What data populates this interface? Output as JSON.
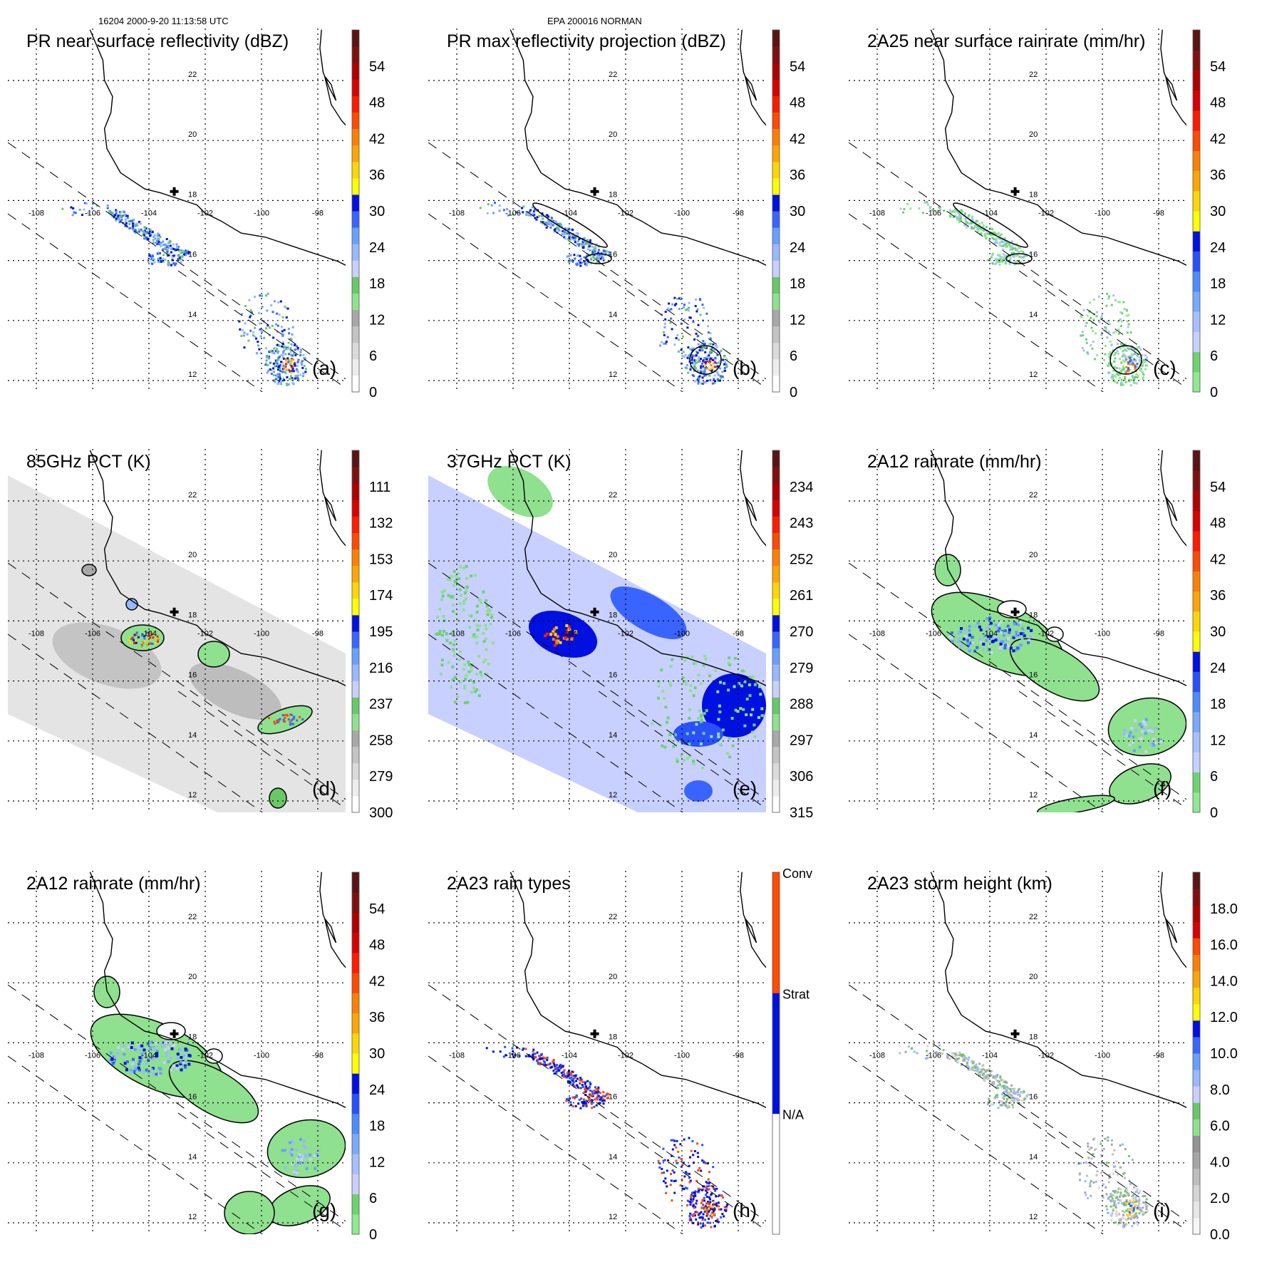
{
  "header": {
    "orbit_time": "16204 2000-9-20 11:13:58 UTC",
    "radar": "EPA 200016 NORMAN"
  },
  "map": {
    "lat_labels": [
      "22",
      "20",
      "18",
      "16",
      "14",
      "12"
    ],
    "lat_values": [
      22,
      20,
      18,
      16,
      14,
      12
    ],
    "lon_labels": [
      "-108",
      "-106",
      "-104",
      "-102",
      "-100",
      "-98"
    ],
    "lon_values": [
      -108,
      -106,
      -104,
      -102,
      -100,
      -98
    ],
    "radar_marker": {
      "lat": 18.3,
      "lon": -103.1
    }
  },
  "palettes": {
    "dbz": [
      "#ffffff",
      "#ededed",
      "#dadada",
      "#c4c4c4",
      "#a8a8a8",
      "#8fe08f",
      "#68c868",
      "#c8d0ff",
      "#98b8ff",
      "#68a0ff",
      "#3a64ff",
      "#0010e0",
      "#ffff00",
      "#ffd700",
      "#ffa500",
      "#ff8000",
      "#ff4a00",
      "#ff1a00",
      "#d80000",
      "#b00000",
      "#801010",
      "#5a1414"
    ],
    "rain": [
      "#90e890",
      "#6ed26e",
      "#c8d0ff",
      "#a6c0ff",
      "#78aaff",
      "#4c8cff",
      "#2850ff",
      "#0010e0",
      "#ffff00",
      "#ffd700",
      "#ffa500",
      "#ff8000",
      "#ff4a00",
      "#ff1a00",
      "#d80000",
      "#b00000",
      "#801010",
      "#5a1414"
    ],
    "height": [
      "#f6f6f6",
      "#e6e6e6",
      "#d4d4d4",
      "#bdbdbd",
      "#a5a5a5",
      "#939393",
      "#8fe08f",
      "#68c868",
      "#c8d0ff",
      "#98b8ff",
      "#68a0ff",
      "#3a64ff",
      "#0010e0",
      "#ffff00",
      "#ffd700",
      "#ffa500",
      "#ff8000",
      "#ff4a00",
      "#d80000",
      "#b00000",
      "#801010",
      "#5a1414"
    ],
    "types": [
      "#ffffff",
      "#0010e0",
      "#ff4a00"
    ]
  },
  "panels": [
    {
      "title": "PR near surface reflectivity (dBZ)",
      "letter": "(a)",
      "palette": "dbz",
      "scale_max": 60,
      "ticks": [
        {
          "v": 0,
          "label": "0"
        },
        {
          "v": 6,
          "label": "6"
        },
        {
          "v": 12,
          "label": "12"
        },
        {
          "v": 18,
          "label": "18"
        },
        {
          "v": 24,
          "label": "24"
        },
        {
          "v": 30,
          "label": "30"
        },
        {
          "v": 36,
          "label": "36"
        },
        {
          "v": 42,
          "label": "42"
        },
        {
          "v": 48,
          "label": "48"
        },
        {
          "v": 54,
          "label": "54"
        }
      ]
    },
    {
      "title": "PR max reflectivity projection (dBZ)",
      "letter": "(b)",
      "palette": "dbz",
      "scale_max": 60,
      "ticks": [
        {
          "v": 0,
          "label": "0"
        },
        {
          "v": 6,
          "label": "6"
        },
        {
          "v": 12,
          "label": "12"
        },
        {
          "v": 18,
          "label": "18"
        },
        {
          "v": 24,
          "label": "24"
        },
        {
          "v": 30,
          "label": "30"
        },
        {
          "v": 36,
          "label": "36"
        },
        {
          "v": 42,
          "label": "42"
        },
        {
          "v": 48,
          "label": "48"
        },
        {
          "v": 54,
          "label": "54"
        }
      ]
    },
    {
      "title": "2A25 near surface rainrate (mm/hr)",
      "letter": "(c)",
      "palette": "rain",
      "scale_max": 60,
      "ticks": [
        {
          "v": 0,
          "label": "0"
        },
        {
          "v": 6,
          "label": "6"
        },
        {
          "v": 12,
          "label": "12"
        },
        {
          "v": 18,
          "label": "18"
        },
        {
          "v": 24,
          "label": "24"
        },
        {
          "v": 30,
          "label": "30"
        },
        {
          "v": 36,
          "label": "36"
        },
        {
          "v": 42,
          "label": "42"
        },
        {
          "v": 48,
          "label": "48"
        },
        {
          "v": 54,
          "label": "54"
        }
      ]
    },
    {
      "title": "85GHz PCT (K)",
      "letter": "(d)",
      "palette": "dbz",
      "scale_max": 60,
      "ticks": [
        {
          "v": 0,
          "label": "300"
        },
        {
          "v": 6,
          "label": "279"
        },
        {
          "v": 12,
          "label": "258"
        },
        {
          "v": 18,
          "label": "237"
        },
        {
          "v": 24,
          "label": "216"
        },
        {
          "v": 30,
          "label": "195"
        },
        {
          "v": 36,
          "label": "174"
        },
        {
          "v": 42,
          "label": "153"
        },
        {
          "v": 48,
          "label": "132"
        },
        {
          "v": 54,
          "label": "111"
        }
      ]
    },
    {
      "title": "37GHz PCT (K)",
      "letter": "(e)",
      "palette": "dbz",
      "scale_max": 60,
      "ticks": [
        {
          "v": 0,
          "label": "315"
        },
        {
          "v": 6,
          "label": "306"
        },
        {
          "v": 12,
          "label": "297"
        },
        {
          "v": 18,
          "label": "288"
        },
        {
          "v": 24,
          "label": "279"
        },
        {
          "v": 30,
          "label": "270"
        },
        {
          "v": 36,
          "label": "261"
        },
        {
          "v": 42,
          "label": "252"
        },
        {
          "v": 48,
          "label": "243"
        },
        {
          "v": 54,
          "label": "234"
        }
      ]
    },
    {
      "title": "2A12 rainrate (mm/hr)",
      "letter": "(f)",
      "palette": "rain",
      "scale_max": 60,
      "ticks": [
        {
          "v": 0,
          "label": "0"
        },
        {
          "v": 6,
          "label": "6"
        },
        {
          "v": 12,
          "label": "12"
        },
        {
          "v": 18,
          "label": "18"
        },
        {
          "v": 24,
          "label": "24"
        },
        {
          "v": 30,
          "label": "30"
        },
        {
          "v": 36,
          "label": "36"
        },
        {
          "v": 42,
          "label": "42"
        },
        {
          "v": 48,
          "label": "48"
        },
        {
          "v": 54,
          "label": "54"
        }
      ]
    },
    {
      "title": "2A12 rainrate (mm/hr)",
      "letter": "(g)",
      "palette": "rain",
      "scale_max": 60,
      "ticks": [
        {
          "v": 0,
          "label": "0"
        },
        {
          "v": 6,
          "label": "6"
        },
        {
          "v": 12,
          "label": "12"
        },
        {
          "v": 18,
          "label": "18"
        },
        {
          "v": 24,
          "label": "24"
        },
        {
          "v": 30,
          "label": "30"
        },
        {
          "v": 36,
          "label": "36"
        },
        {
          "v": 42,
          "label": "42"
        },
        {
          "v": 48,
          "label": "48"
        },
        {
          "v": 54,
          "label": "54"
        }
      ]
    },
    {
      "title": "2A23 rain types",
      "letter": "(h)",
      "palette": "types",
      "scale_max": 3,
      "ticks": [
        {
          "v": 1,
          "label": "N/A"
        },
        {
          "v": 2,
          "label": "Strat"
        },
        {
          "v": 3,
          "label": "Conv"
        }
      ]
    },
    {
      "title": "2A23 storm height (km)",
      "letter": "(i)",
      "palette": "height",
      "scale_max": 20,
      "ticks": [
        {
          "v": 0,
          "label": "0.0"
        },
        {
          "v": 2,
          "label": "2.0"
        },
        {
          "v": 4,
          "label": "4.0"
        },
        {
          "v": 6,
          "label": "6.0"
        },
        {
          "v": 8,
          "label": "8.0"
        },
        {
          "v": 10,
          "label": "10.0"
        },
        {
          "v": 12,
          "label": "12.0"
        },
        {
          "v": 14,
          "label": "14.0"
        },
        {
          "v": 16,
          "label": "16.0"
        },
        {
          "v": 18,
          "label": "18.0"
        }
      ]
    }
  ]
}
